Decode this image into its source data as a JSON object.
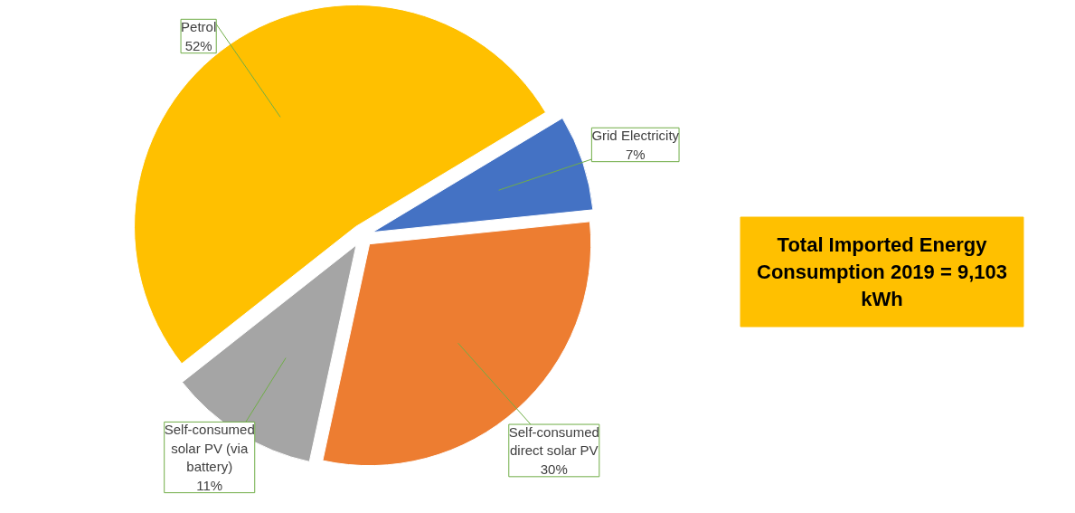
{
  "chart_data": {
    "type": "pie",
    "categories": [
      "Grid Electricity",
      "Self-consumed direct solar PV",
      "Self-consumed solar PV (via battery)",
      "Petrol"
    ],
    "values": [
      7,
      30,
      11,
      52
    ],
    "colors": [
      "#4472c4",
      "#ed7d31",
      "#a5a5a5",
      "#ffc000"
    ],
    "value_labels": [
      "7%",
      "30%",
      "11%",
      "52%"
    ],
    "annotations": [
      "Total Imported Energy Consumption 2019 = 9,103 kWh"
    ]
  }
}
